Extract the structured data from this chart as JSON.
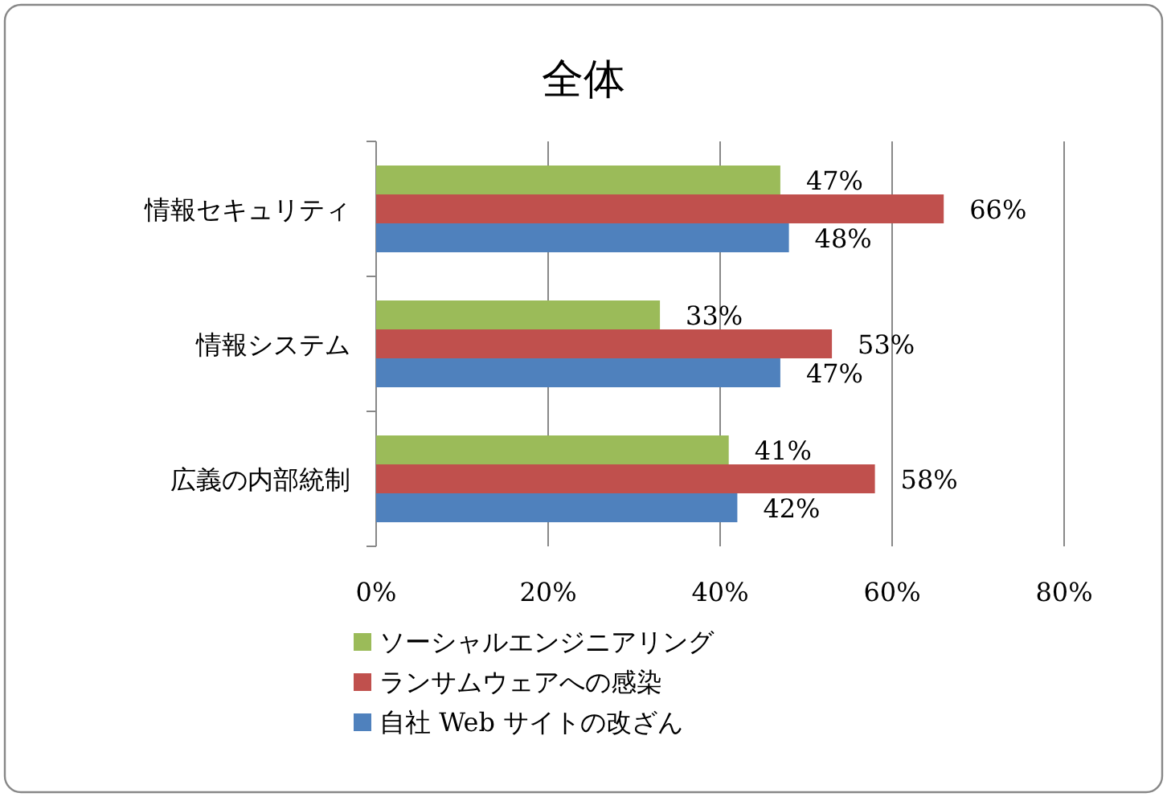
{
  "chart_data": {
    "type": "bar",
    "orientation": "horizontal",
    "title": "全体",
    "categories": [
      "情報セキュリティ",
      "情報システム",
      "広義の内部統制"
    ],
    "series": [
      {
        "name": "ソーシャルエンジニアリング",
        "color": "#9bbb59",
        "values": [
          47,
          33,
          41
        ],
        "value_labels": [
          "47%",
          "33%",
          "41%"
        ]
      },
      {
        "name": "ランサムウェアへの感染",
        "color": "#c0504d",
        "values": [
          66,
          53,
          58
        ],
        "value_labels": [
          "66%",
          "53%",
          "58%"
        ]
      },
      {
        "name": "自社 Web サイトの改ざん",
        "color": "#4f81bd",
        "values": [
          48,
          47,
          42
        ],
        "value_labels": [
          "48%",
          "47%",
          "42%"
        ]
      }
    ],
    "xlim": [
      0,
      80
    ],
    "xticks": [
      {
        "value": 0,
        "label": "0%"
      },
      {
        "value": 20,
        "label": "20%"
      },
      {
        "value": 40,
        "label": "40%"
      },
      {
        "value": 60,
        "label": "60%"
      },
      {
        "value": 80,
        "label": "80%"
      }
    ],
    "grid": "x",
    "legend": "bottom"
  }
}
